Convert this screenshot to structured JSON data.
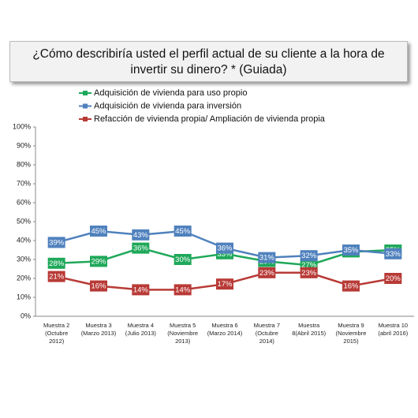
{
  "chart_data": {
    "type": "line",
    "title": "¿Cómo describiría usted el perfil actual de su cliente a la hora de invertir su dinero? * (Guiada)",
    "categories": [
      [
        "Muestra 2",
        "(Octubre",
        "2012)"
      ],
      [
        "Muestra 3",
        "(Marzo 2013)"
      ],
      [
        "Muestra 4",
        "(Julio 2013)"
      ],
      [
        "Muestra 5",
        "(Noviembre",
        "2013)"
      ],
      [
        "Muestra 6",
        "(Marzo 2014)"
      ],
      [
        "Muestra 7",
        "(Octubre",
        "2014)"
      ],
      [
        "Muestra",
        "8(Abril 2015)"
      ],
      [
        "Muestra 9",
        "(Noviembre",
        "2015)"
      ],
      [
        "Muestra 10",
        "(abril 2016)"
      ]
    ],
    "series": [
      {
        "name": "Adquisición de vivienda para uso propio",
        "color": "#1fa85a",
        "values": [
          28,
          29,
          36,
          30,
          33,
          29,
          27,
          34,
          35
        ],
        "value_labels": [
          "28%",
          "29%",
          "36%",
          "30%",
          "33%",
          "29%",
          "27%",
          "34%",
          "35%"
        ]
      },
      {
        "name": "Adquisición de vivienda para inversión",
        "color": "#4f81bd",
        "values": [
          39,
          45,
          43,
          45,
          36,
          31,
          32,
          35,
          33
        ],
        "value_labels": [
          "39%",
          "45%",
          "43%",
          "45%",
          "36%",
          "31%",
          "32%",
          "35%",
          "33%"
        ]
      },
      {
        "name": "Refacción de vivienda propia/ Ampliación de vivienda propia",
        "color": "#b83a36",
        "values": [
          21,
          16,
          14,
          14,
          17,
          23,
          23,
          16,
          20
        ],
        "value_labels": [
          "21%",
          "16%",
          "14%",
          "14%",
          "17%",
          "23%",
          "23%",
          "16%",
          "20%"
        ]
      }
    ],
    "ylim": [
      0,
      100
    ],
    "yticks": [
      {
        "value": 0,
        "label": "0%"
      },
      {
        "value": 10,
        "label": "10%"
      },
      {
        "value": 20,
        "label": "20%"
      },
      {
        "value": 30,
        "label": "30%"
      },
      {
        "value": 40,
        "label": "40%"
      },
      {
        "value": 50,
        "label": "50%"
      },
      {
        "value": 60,
        "label": "60%"
      },
      {
        "value": 70,
        "label": "70%"
      },
      {
        "value": 80,
        "label": "80%"
      },
      {
        "value": 90,
        "label": "90%"
      },
      {
        "value": 100,
        "label": "100%"
      }
    ]
  }
}
